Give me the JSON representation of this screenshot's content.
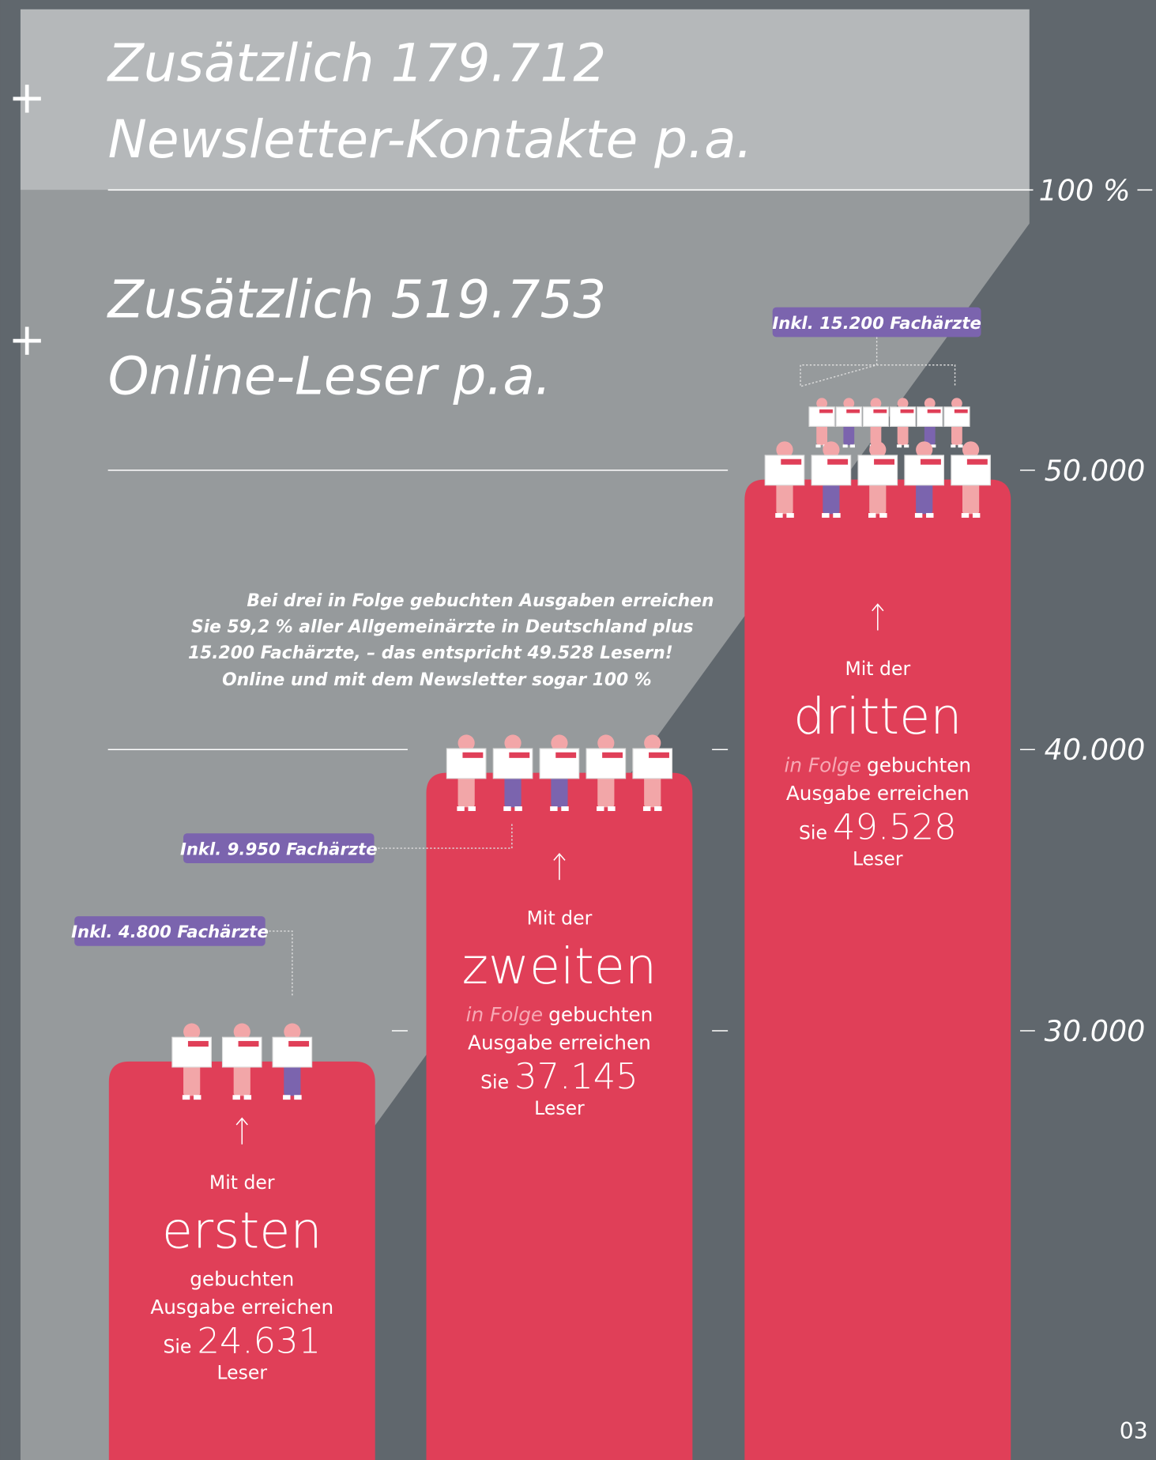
{
  "header": {
    "newsletter": {
      "line1": "Zusätzlich 179.712",
      "line2": "Newsletter-Kontakte p.a."
    },
    "online": {
      "line1": "Zusätzlich 519.753",
      "line2": "Online-Leser p.a."
    }
  },
  "scale": [
    "100 %",
    "50.000",
    "40.000",
    "30.000"
  ],
  "note": [
    "Bei drei in Folge gebuchten Ausgaben erreichen",
    "Sie 59,2 % aller Allgemeinärzte in Deutschland plus",
    "15.200 Fachärzte, – das entspricht 49.528 Lesern!",
    "Online und mit dem Newsletter sogar 100 %"
  ],
  "steps": [
    {
      "badge": "Inkl. 4.800 Fachärzte",
      "intro": "Mit der",
      "ordinal": "ersten",
      "line1": "gebuchten",
      "line2": "Ausgabe erreichen",
      "sie": "Sie",
      "readers": "24.631",
      "leser": "Leser"
    },
    {
      "badge": "Inkl. 9.950 Fachärzte",
      "intro": "Mit der",
      "ordinal": "zweiten",
      "in_folge": "in Folge",
      "line1": "gebuchten",
      "line2": "Ausgabe erreichen",
      "sie": "Sie",
      "readers": "37.145",
      "leser": "Leser"
    },
    {
      "badge": "Inkl. 15.200 Fachärzte",
      "intro": "Mit der",
      "ordinal": "dritten",
      "in_folge": "in Folge",
      "line1": "gebuchten",
      "line2": "Ausgabe erreichen",
      "sie": "Sie",
      "readers": "49.528",
      "leser": "Leser"
    }
  ],
  "page_number": "03"
}
